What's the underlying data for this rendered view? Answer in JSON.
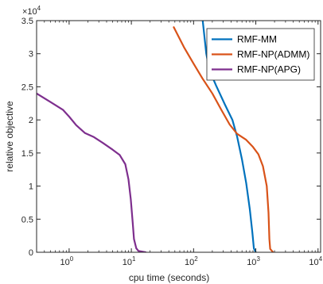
{
  "chart_data": {
    "type": "line",
    "xlabel": "cpu time (seconds)",
    "ylabel": "relative objective",
    "y_exponent_label": "×10",
    "y_exponent_power": "4",
    "xscale": "log",
    "xlim": [
      0.3,
      11000
    ],
    "ylim": [
      0,
      35000
    ],
    "grid": false,
    "legend_position": "top-right",
    "x_ticks": [
      {
        "value": 1,
        "base": "10",
        "power": "0"
      },
      {
        "value": 10,
        "base": "10",
        "power": "1"
      },
      {
        "value": 100,
        "base": "10",
        "power": "2"
      },
      {
        "value": 1000,
        "base": "10",
        "power": "3"
      },
      {
        "value": 10000,
        "base": "10",
        "power": "4"
      }
    ],
    "y_ticks": [
      {
        "value": 0,
        "label": "0"
      },
      {
        "value": 5000,
        "label": "0.5"
      },
      {
        "value": 10000,
        "label": "1"
      },
      {
        "value": 15000,
        "label": "1.5"
      },
      {
        "value": 20000,
        "label": "2"
      },
      {
        "value": 25000,
        "label": "2.5"
      },
      {
        "value": 30000,
        "label": "3"
      },
      {
        "value": 35000,
        "label": "3.5"
      }
    ],
    "series": [
      {
        "name": "RMF-MM",
        "color": "#0072BD",
        "points": [
          [
            140,
            35000
          ],
          [
            160,
            30000
          ],
          [
            180,
            27500
          ],
          [
            230,
            25200
          ],
          [
            320,
            22300
          ],
          [
            420,
            20000
          ],
          [
            500,
            17500
          ],
          [
            600,
            14000
          ],
          [
            700,
            10500
          ],
          [
            800,
            6500
          ],
          [
            880,
            3000
          ],
          [
            930,
            600
          ],
          [
            1000,
            0
          ]
        ]
      },
      {
        "name": "RMF-NP(ADMM)",
        "color": "#D95319",
        "points": [
          [
            48,
            34000
          ],
          [
            70,
            31000
          ],
          [
            100,
            28500
          ],
          [
            140,
            26200
          ],
          [
            200,
            24000
          ],
          [
            280,
            21500
          ],
          [
            380,
            19300
          ],
          [
            500,
            17900
          ],
          [
            700,
            17000
          ],
          [
            900,
            15900
          ],
          [
            1100,
            14800
          ],
          [
            1300,
            13000
          ],
          [
            1500,
            10000
          ],
          [
            1600,
            6000
          ],
          [
            1650,
            2000
          ],
          [
            1700,
            500
          ],
          [
            1900,
            0
          ]
        ]
      },
      {
        "name": "RMF-NP(APG)",
        "color": "#7E2F8E",
        "points": [
          [
            0.3,
            24000
          ],
          [
            0.5,
            22700
          ],
          [
            0.8,
            21500
          ],
          [
            1.0,
            20500
          ],
          [
            1.3,
            19200
          ],
          [
            1.8,
            18000
          ],
          [
            2.5,
            17400
          ],
          [
            3.5,
            16500
          ],
          [
            5.0,
            15500
          ],
          [
            6.5,
            14700
          ],
          [
            8.0,
            13300
          ],
          [
            9.0,
            11000
          ],
          [
            9.8,
            8000
          ],
          [
            10.5,
            4500
          ],
          [
            11.0,
            2000
          ],
          [
            12.0,
            600
          ],
          [
            13.0,
            200
          ],
          [
            17.0,
            0
          ]
        ]
      }
    ]
  }
}
